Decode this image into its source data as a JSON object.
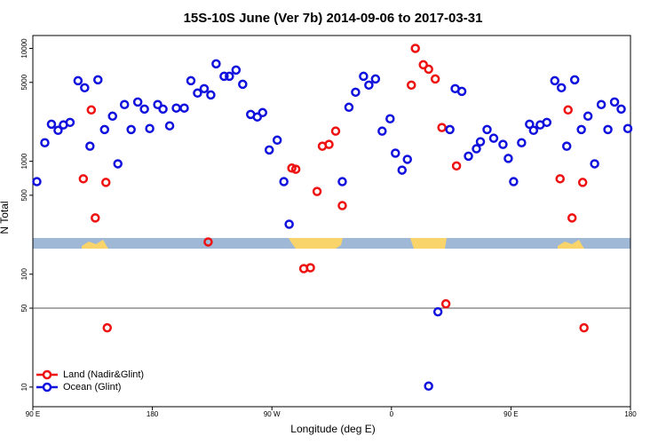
{
  "chart_data": {
    "type": "scatter",
    "title": "15S-10S June (Ver 7b)   2014-09-06 to 2017-03-31",
    "x_label": "Longitude (deg E)",
    "y_label": "N Total",
    "log_y": true,
    "xlim": [
      90,
      540
    ],
    "ylim": [
      6.7,
      13000
    ],
    "xticks": [
      {
        "value": 90,
        "label": "90 E"
      },
      180,
      {
        "value": 270,
        "label": "90 W"
      },
      {
        "value": 360,
        "label": "0"
      },
      {
        "value": 450,
        "label": "90 E"
      },
      {
        "value": 540,
        "label": "180"
      }
    ],
    "yticks": [
      10,
      50,
      100,
      500,
      1000,
      5000,
      10000
    ],
    "reference_line": 50,
    "legend_position": "bottom-left",
    "series": [
      {
        "name": "Land (Nadir&Glint)",
        "color": "#ee1111",
        "x": [
          128,
          134,
          137,
          145,
          146,
          222,
          285,
          288,
          294,
          299,
          304,
          308,
          313,
          318,
          323,
          375,
          378,
          384,
          388,
          393,
          398,
          401,
          409,
          487,
          493,
          496,
          504,
          505
        ],
        "values": [
          700,
          2850,
          315,
          650,
          33.5,
          193,
          870,
          850,
          112,
          114,
          540,
          1360,
          1410,
          1850,
          405,
          4730,
          10000,
          7160,
          6540,
          5360,
          1990,
          54.6,
          910,
          700,
          2850,
          315,
          650,
          33.5
        ]
      },
      {
        "name": "Ocean (Glint)",
        "color": "#1111dd",
        "x": [
          93,
          99,
          104,
          109,
          113,
          118,
          124,
          129,
          133,
          139,
          144,
          150,
          154,
          159,
          164,
          169,
          174,
          178,
          184,
          188,
          193,
          198,
          204,
          209,
          214,
          219,
          224,
          228,
          234,
          238,
          243,
          248,
          254,
          259,
          263,
          268,
          274,
          279,
          283,
          323,
          328,
          333,
          339,
          343,
          348,
          353,
          359,
          363,
          368,
          372,
          388,
          395,
          404,
          408,
          413,
          418,
          424,
          427,
          432,
          437,
          444,
          448,
          452,
          458,
          464,
          467,
          472,
          477,
          483,
          488,
          492,
          498,
          503,
          508,
          513,
          518,
          523,
          528,
          533,
          538
        ],
        "values": [
          660,
          1460,
          2130,
          1880,
          2100,
          2210,
          5170,
          4480,
          1360,
          5270,
          1910,
          2510,
          950,
          3180,
          1910,
          3350,
          2900,
          1950,
          3180,
          2900,
          2060,
          2960,
          2960,
          5170,
          4020,
          4400,
          3870,
          7300,
          5660,
          5660,
          6430,
          4810,
          2600,
          2470,
          2700,
          1260,
          1540,
          660,
          277,
          660,
          3010,
          4090,
          5660,
          4730,
          5360,
          1850,
          2380,
          1180,
          835,
          1040,
          10.2,
          46.4,
          1910,
          4400,
          4160,
          1110,
          1290,
          1490,
          1910,
          1600,
          1410,
          1060,
          660,
          1460,
          2130,
          1880,
          2100,
          2210,
          5170,
          4480,
          1360,
          5270,
          1910,
          2510,
          950,
          3180,
          1910,
          3350,
          2900,
          1950
        ]
      }
    ]
  }
}
